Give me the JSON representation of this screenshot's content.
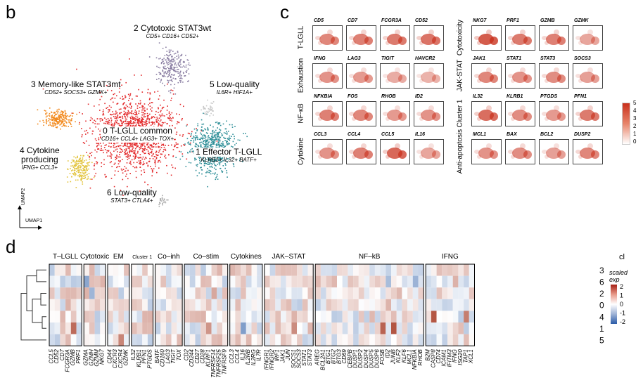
{
  "panels": {
    "b": "b",
    "c": "c",
    "d": "d"
  },
  "panel_b": {
    "axes": {
      "x": "UMAP1",
      "y": "UMAP2"
    },
    "clusters": [
      {
        "title": "2 Cytotoxic STAT3wt",
        "markers": "CD5+ CD16+ CD52+"
      },
      {
        "title": "3 Memory-like STAT3mt",
        "markers": "CD52+ SOCS3+ GZMK+"
      },
      {
        "title": "5 Low-quality",
        "markers": "IL6R+ HIF1A+"
      },
      {
        "title": "0  T-LGLL common",
        "markers": "CD16+ CCL4+  LAG3+ TOX+"
      },
      {
        "title": "1 Effector T-LGLL",
        "markers": "KLRB1+ IL32+ BATF+"
      },
      {
        "title": "4 Cytokine producing",
        "title_line1": "4 Cytokine",
        "title_line2": "producing",
        "markers": "IFNG+ CCL3+"
      },
      {
        "title": "6 Low-quality",
        "markers": "STAT3+ CTLA4+"
      }
    ],
    "colors": {
      "c0": "#e3282a",
      "c1": "#2f8f98",
      "c2": "#8b7fa3",
      "c3": "#f28a1e",
      "c4": "#e2c33a",
      "c5": "#c9c9c9",
      "c6": "#a8a8a8"
    }
  },
  "panel_c": {
    "left_groups": [
      {
        "label": "T-LGLL",
        "genes": [
          "CD5",
          "CD7",
          "FCGR3A",
          "CD52"
        ]
      },
      {
        "label": "Exhaustion",
        "genes": [
          "IFNG",
          "LAG3",
          "TIGIT",
          "HAVCR2"
        ]
      },
      {
        "label": "NF-κB",
        "genes": [
          "NFKBIA",
          "FOS",
          "RHOB",
          "ID2"
        ]
      },
      {
        "label": "Cytokine",
        "genes": [
          "CCL3",
          "CCL4",
          "CCL5",
          "IL16"
        ]
      }
    ],
    "right_groups": [
      {
        "label": "Cytotoxicity",
        "genes": [
          "NKG7",
          "PRF1",
          "GZMB",
          "GZMK"
        ]
      },
      {
        "label": "JAK-STAT",
        "genes": [
          "JAK1",
          "STAT1",
          "STAT3",
          "SOCS3"
        ]
      },
      {
        "label": "Cluster 1",
        "genes": [
          "IL32",
          "KLRB1",
          "PTGDS",
          "PFN1"
        ]
      },
      {
        "label": "Anti-apoptosis",
        "genes": [
          "MCL1",
          "BAX",
          "BCL2",
          "DUSP2"
        ]
      }
    ],
    "expression_levels": [
      [
        2.2,
        2.4,
        2.6,
        2.8,
        3.6,
        2.6,
        2.4,
        1.2
      ],
      [
        1.8,
        1.6,
        1.0,
        0.8,
        2.2,
        1.8,
        2.0,
        1.4
      ],
      [
        2.4,
        2.2,
        1.6,
        1.8,
        3.0,
        2.0,
        1.6,
        2.6
      ],
      [
        1.8,
        2.4,
        3.2,
        1.2,
        1.8,
        2.0,
        1.4,
        2.2
      ]
    ],
    "legend": {
      "ticks": [
        "5",
        "4",
        "3",
        "2",
        "1",
        "0"
      ],
      "colors": [
        "#c9301c",
        "#ffffff"
      ]
    }
  },
  "panel_d": {
    "cl_header": "cl",
    "cluster_order": [
      "3",
      "6",
      "2",
      "0",
      "4",
      "1",
      "5"
    ],
    "legend": {
      "title_line1": "scaled",
      "title_line2": "exp",
      "ticks": [
        "2",
        "1",
        "0",
        "-1",
        "-2"
      ]
    },
    "groups": [
      {
        "label": "T–LGLL",
        "genes": [
          "CCL5",
          "CD52",
          "CD7",
          "FCGR3A",
          "GZMB",
          "PRF1"
        ]
      },
      {
        "label": "Cytotoxic",
        "genes": [
          "GZMA",
          "GZMH",
          "GZMM",
          "NKG7"
        ]
      },
      {
        "label": "EM",
        "genes": [
          "CD44",
          "CXCR3",
          "CXCR4",
          "GZMK"
        ]
      },
      {
        "label": "Cluster 1",
        "genes": [
          "IL32",
          "KLRB1",
          "PFN1",
          "PTGDS"
        ]
      },
      {
        "label": "Co–inh",
        "genes": [
          "BATF",
          "CD160",
          "LAG3",
          "TIGIT",
          "TOX"
        ]
      },
      {
        "label": "Co–stim",
        "genes": [
          "CD2",
          "CD244",
          "CD27",
          "CD28",
          "KLRF1",
          "TNFRSF14",
          "TNFRSF25",
          "TNFRSF9"
        ]
      },
      {
        "label": "Cytokines",
        "genes": [
          "CCL3",
          "CCL4",
          "IL16",
          "IL2RB",
          "IL2RG",
          "IL7R"
        ]
      },
      {
        "label": "JAK–STAT",
        "genes": [
          "IFNGR1",
          "IFNGR2",
          "IRF1",
          "JAK1",
          "JUN",
          "SOCS1",
          "SOCS3",
          "STAT1",
          "STAT3"
        ]
      },
      {
        "label": "NF–kB",
        "genes": [
          "AREG",
          "BCL2A1",
          "BTG1",
          "BTG2",
          "BTG3",
          "CD69",
          "CEBPB",
          "DUSP1",
          "DUSP2",
          "DUSP4",
          "DUSP5",
          "DUSP6",
          "FOSB",
          "ID2",
          "JUNB",
          "KLF2",
          "KLF6",
          "MCL1",
          "NFKBIA",
          "RHOB"
        ]
      },
      {
        "label": "IFNG",
        "genes": [
          "B2M",
          "CASP8",
          "CD74",
          "ICAM1",
          "IFITM3",
          "IFNG",
          "ISG20",
          "TAP1",
          "XCL1"
        ]
      }
    ]
  }
}
